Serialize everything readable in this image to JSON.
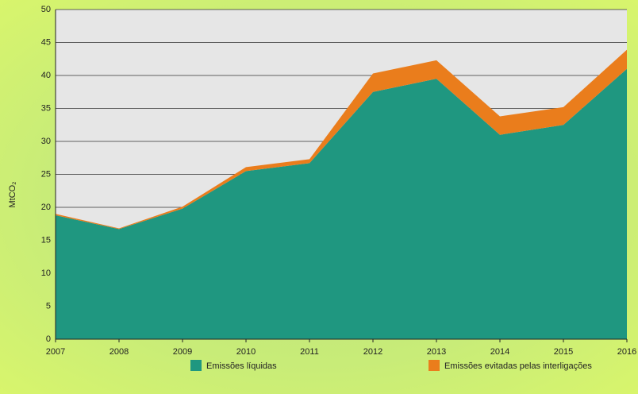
{
  "chart_data": {
    "type": "stacked_area",
    "y_label": "MtCO₂",
    "x": [
      2007,
      2008,
      2009,
      2010,
      2011,
      2012,
      2013,
      2014,
      2015,
      2016
    ],
    "xlim": [
      2007,
      2016
    ],
    "xticks": [
      2007,
      2008,
      2009,
      2010,
      2011,
      2012,
      2013,
      2014,
      2015,
      2016
    ],
    "ylim": [
      0,
      50
    ],
    "yticks": [
      0,
      5,
      10,
      15,
      20,
      25,
      30,
      35,
      40,
      45,
      50
    ],
    "grid": true,
    "series": [
      {
        "name": "Emissões líquidas",
        "color": "#1f9780",
        "values": [
          18.8,
          16.7,
          19.8,
          25.5,
          26.7,
          37.5,
          39.5,
          31.0,
          32.5,
          41.0
        ]
      },
      {
        "name": "Emissões evitadas pelas interligações",
        "color": "#ea7d1c",
        "values": [
          0.2,
          0.1,
          0.3,
          0.6,
          0.6,
          2.8,
          2.8,
          2.8,
          2.7,
          2.9
        ]
      }
    ]
  }
}
